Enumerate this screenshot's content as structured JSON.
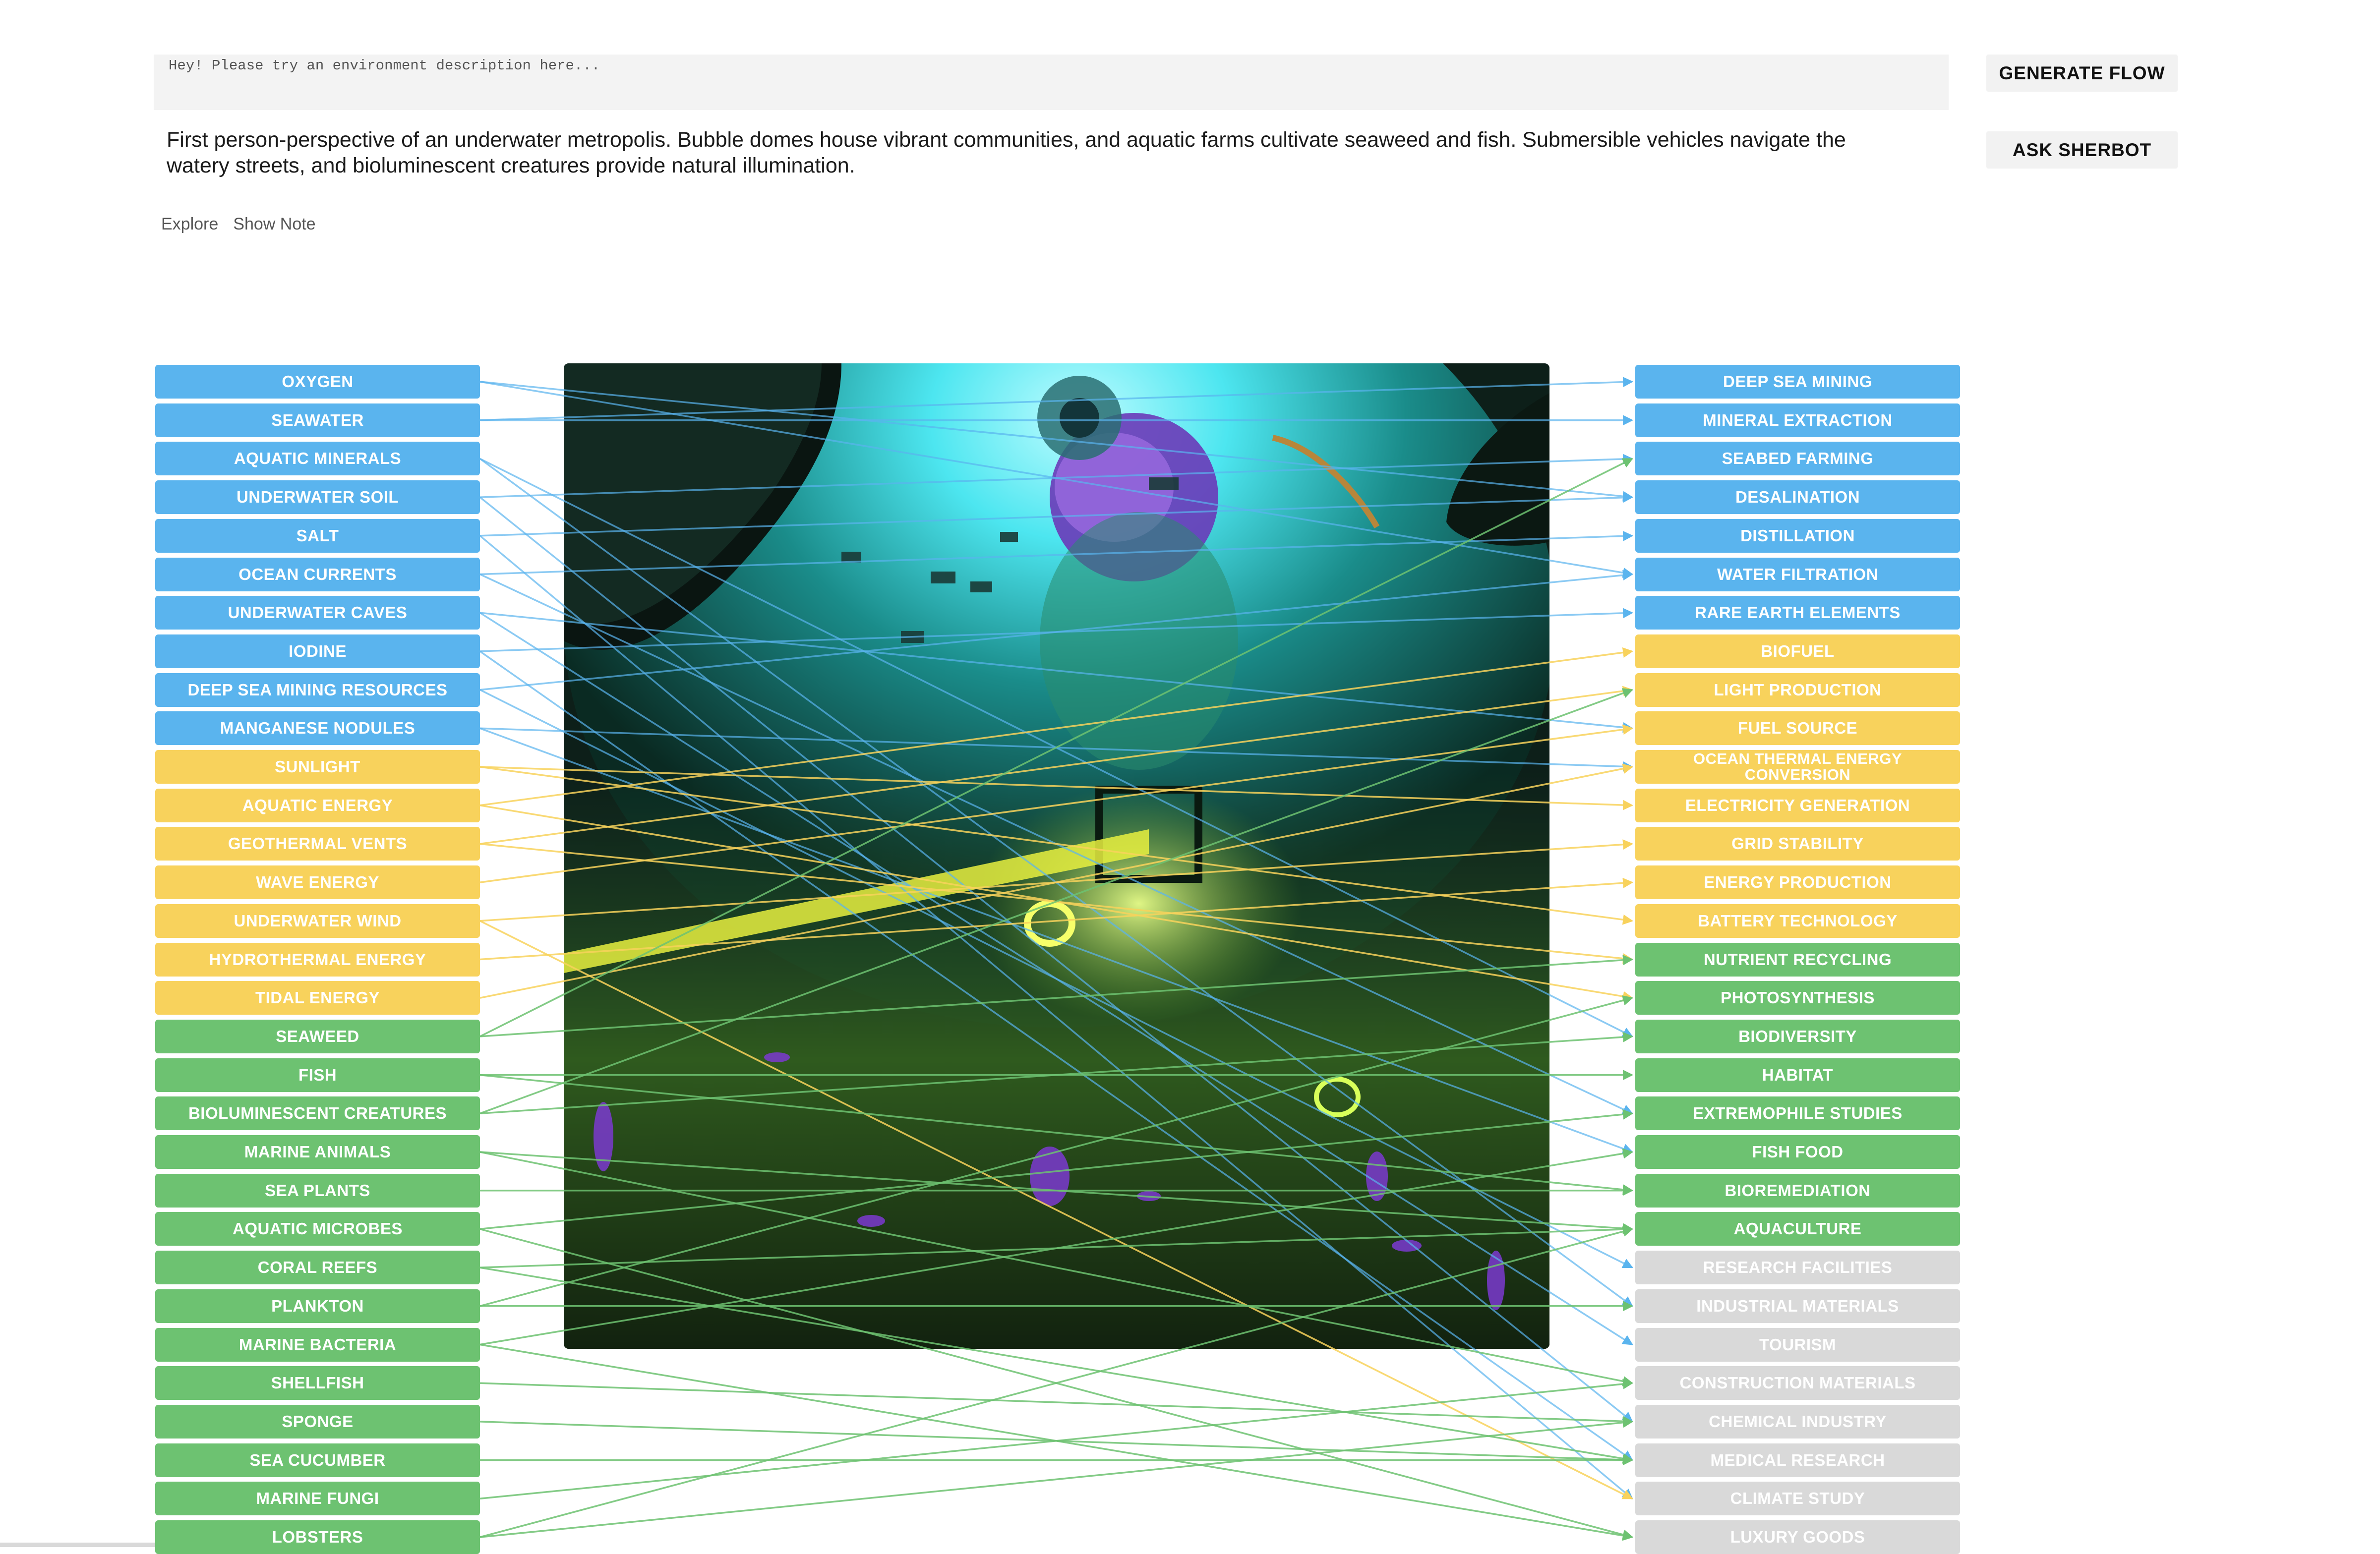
{
  "prompt": {
    "placeholder": "Hey! Please try an environment description here...",
    "description": "First person-perspective of an underwater metropolis. Bubble domes house vibrant communities, and aquatic farms cultivate seaweed and fish. Submersible vehicles navigate the watery streets, and bioluminescent creatures provide natural illumination."
  },
  "tabs": [
    "Explore",
    "Show Note"
  ],
  "actions": {
    "generate": "GENERATE FLOW",
    "ask": "ASK SHERBOT"
  },
  "colors": {
    "resource": "#5ab4ee",
    "energy": "#f8d25c",
    "bio": "#6dc271",
    "other": "#d9d9d9"
  },
  "left_nodes": [
    {
      "label": "OXYGEN",
      "group": "resource"
    },
    {
      "label": "SEAWATER",
      "group": "resource"
    },
    {
      "label": "AQUATIC MINERALS",
      "group": "resource"
    },
    {
      "label": "UNDERWATER SOIL",
      "group": "resource"
    },
    {
      "label": "SALT",
      "group": "resource"
    },
    {
      "label": "OCEAN CURRENTS",
      "group": "resource"
    },
    {
      "label": "UNDERWATER CAVES",
      "group": "resource"
    },
    {
      "label": "IODINE",
      "group": "resource"
    },
    {
      "label": "DEEP SEA MINING RESOURCES",
      "group": "resource"
    },
    {
      "label": "MANGANESE NODULES",
      "group": "resource"
    },
    {
      "label": "SUNLIGHT",
      "group": "energy"
    },
    {
      "label": "AQUATIC ENERGY",
      "group": "energy"
    },
    {
      "label": "GEOTHERMAL VENTS",
      "group": "energy"
    },
    {
      "label": "WAVE ENERGY",
      "group": "energy"
    },
    {
      "label": "UNDERWATER WIND",
      "group": "energy"
    },
    {
      "label": "HYDROTHERMAL ENERGY",
      "group": "energy"
    },
    {
      "label": "TIDAL ENERGY",
      "group": "energy"
    },
    {
      "label": "SEAWEED",
      "group": "bio"
    },
    {
      "label": "FISH",
      "group": "bio"
    },
    {
      "label": "BIOLUMINESCENT CREATURES",
      "group": "bio"
    },
    {
      "label": "MARINE ANIMALS",
      "group": "bio"
    },
    {
      "label": "SEA PLANTS",
      "group": "bio"
    },
    {
      "label": "AQUATIC MICROBES",
      "group": "bio"
    },
    {
      "label": "CORAL REEFS",
      "group": "bio"
    },
    {
      "label": "PLANKTON",
      "group": "bio"
    },
    {
      "label": "MARINE BACTERIA",
      "group": "bio"
    },
    {
      "label": "SHELLFISH",
      "group": "bio"
    },
    {
      "label": "SPONGE",
      "group": "bio"
    },
    {
      "label": "SEA CUCUMBER",
      "group": "bio"
    },
    {
      "label": "MARINE FUNGI",
      "group": "bio"
    },
    {
      "label": "LOBSTERS",
      "group": "bio"
    }
  ],
  "right_nodes": [
    {
      "label": "DEEP SEA MINING",
      "group": "resource"
    },
    {
      "label": "MINERAL EXTRACTION",
      "group": "resource"
    },
    {
      "label": "SEABED FARMING",
      "group": "resource"
    },
    {
      "label": "DESALINATION",
      "group": "resource"
    },
    {
      "label": "DISTILLATION",
      "group": "resource"
    },
    {
      "label": "WATER FILTRATION",
      "group": "resource"
    },
    {
      "label": "RARE EARTH ELEMENTS",
      "group": "resource"
    },
    {
      "label": "BIOFUEL",
      "group": "energy"
    },
    {
      "label": "LIGHT PRODUCTION",
      "group": "energy"
    },
    {
      "label": "FUEL SOURCE",
      "group": "energy"
    },
    {
      "label": "OCEAN THERMAL ENERGY CONVERSION",
      "group": "energy"
    },
    {
      "label": "ELECTRICITY GENERATION",
      "group": "energy"
    },
    {
      "label": "GRID STABILITY",
      "group": "energy"
    },
    {
      "label": "ENERGY PRODUCTION",
      "group": "energy"
    },
    {
      "label": "BATTERY TECHNOLOGY",
      "group": "energy"
    },
    {
      "label": "NUTRIENT RECYCLING",
      "group": "bio"
    },
    {
      "label": "PHOTOSYNTHESIS",
      "group": "bio"
    },
    {
      "label": "BIODIVERSITY",
      "group": "bio"
    },
    {
      "label": "HABITAT",
      "group": "bio"
    },
    {
      "label": "EXTREMOPHILE STUDIES",
      "group": "bio"
    },
    {
      "label": "FISH FOOD",
      "group": "bio"
    },
    {
      "label": "BIOREMEDIATION",
      "group": "bio"
    },
    {
      "label": "AQUACULTURE",
      "group": "bio"
    },
    {
      "label": "RESEARCH FACILITIES",
      "group": "other"
    },
    {
      "label": "INDUSTRIAL MATERIALS",
      "group": "other"
    },
    {
      "label": "TOURISM",
      "group": "other"
    },
    {
      "label": "CONSTRUCTION MATERIALS",
      "group": "other"
    },
    {
      "label": "CHEMICAL INDUSTRY",
      "group": "other"
    },
    {
      "label": "MEDICAL RESEARCH",
      "group": "other"
    },
    {
      "label": "CLIMATE STUDY",
      "group": "other"
    },
    {
      "label": "LUXURY GOODS",
      "group": "other"
    }
  ],
  "links": [
    [
      0,
      5
    ],
    [
      0,
      3
    ],
    [
      1,
      1
    ],
    [
      1,
      0
    ],
    [
      2,
      24
    ],
    [
      2,
      17
    ],
    [
      3,
      2
    ],
    [
      3,
      27
    ],
    [
      4,
      3
    ],
    [
      4,
      29
    ],
    [
      5,
      19
    ],
    [
      5,
      4
    ],
    [
      6,
      25
    ],
    [
      6,
      9
    ],
    [
      7,
      6
    ],
    [
      7,
      28
    ],
    [
      8,
      5
    ],
    [
      8,
      23
    ],
    [
      9,
      10
    ],
    [
      9,
      20
    ],
    [
      10,
      11
    ],
    [
      10,
      14
    ],
    [
      11,
      7
    ],
    [
      11,
      16
    ],
    [
      12,
      8
    ],
    [
      12,
      15
    ],
    [
      13,
      9
    ],
    [
      14,
      12
    ],
    [
      14,
      29
    ],
    [
      15,
      13
    ],
    [
      16,
      10
    ],
    [
      17,
      15
    ],
    [
      17,
      2
    ],
    [
      18,
      18
    ],
    [
      18,
      21
    ],
    [
      19,
      17
    ],
    [
      19,
      8
    ],
    [
      20,
      22
    ],
    [
      20,
      26
    ],
    [
      21,
      21
    ],
    [
      22,
      19
    ],
    [
      22,
      30
    ],
    [
      23,
      28
    ],
    [
      23,
      22
    ],
    [
      24,
      24
    ],
    [
      24,
      16
    ],
    [
      25,
      30
    ],
    [
      25,
      20
    ],
    [
      26,
      27
    ],
    [
      27,
      28
    ],
    [
      28,
      28
    ],
    [
      29,
      26
    ],
    [
      30,
      22
    ],
    [
      30,
      27
    ]
  ]
}
